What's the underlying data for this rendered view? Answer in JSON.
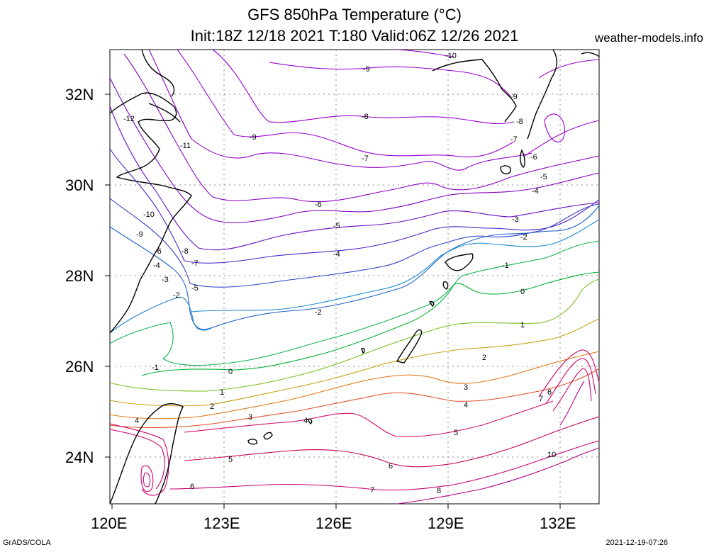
{
  "header": {
    "title_line1": "GFS 850hPa Temperature (°C)",
    "title_line2": "Init:18Z 12/18 2021 T:180 Valid:06Z 12/26 2021",
    "site": "weather-models.info"
  },
  "footer": {
    "left": "GrADS/COLA",
    "right": "2021-12-19-07:26"
  },
  "map": {
    "lat_labels": [
      "32N",
      "30N",
      "28N",
      "26N",
      "24N"
    ],
    "lon_labels": [
      "120E",
      "123E",
      "126E",
      "129E",
      "132E"
    ],
    "grid": "dotted",
    "colors": {
      "cold": "#8a00c8",
      "blue": "#1e5ac8",
      "green": "#00b43c",
      "orange": "#e6781e",
      "warm": "#c8006e"
    }
  },
  "contour_labels": [
    {
      "t": "-10"
    },
    {
      "t": "-9"
    },
    {
      "t": "-9"
    },
    {
      "t": "-8"
    },
    {
      "t": "-12"
    },
    {
      "t": "-11"
    },
    {
      "t": "-9"
    },
    {
      "t": "-8"
    },
    {
      "t": "-7"
    },
    {
      "t": "-6"
    },
    {
      "t": "-7"
    },
    {
      "t": "-5"
    },
    {
      "t": "-4"
    },
    {
      "t": "-10"
    },
    {
      "t": "-6"
    },
    {
      "t": "-9"
    },
    {
      "t": "-5"
    },
    {
      "t": "-3"
    },
    {
      "t": "-8"
    },
    {
      "t": "-2"
    },
    {
      "t": "-6"
    },
    {
      "t": "-7"
    },
    {
      "t": "-4"
    },
    {
      "t": "-1"
    },
    {
      "t": "-4"
    },
    {
      "t": "-3"
    },
    {
      "t": "-5"
    },
    {
      "t": "0"
    },
    {
      "t": "-2"
    },
    {
      "t": "-2"
    },
    {
      "t": "1"
    },
    {
      "t": "-1"
    },
    {
      "t": "0"
    },
    {
      "t": "2"
    },
    {
      "t": "1"
    },
    {
      "t": "3"
    },
    {
      "t": "2"
    },
    {
      "t": "4"
    },
    {
      "t": "3"
    },
    {
      "t": "6"
    },
    {
      "t": "7"
    },
    {
      "t": "4"
    },
    {
      "t": "4"
    },
    {
      "t": "5"
    },
    {
      "t": "10"
    },
    {
      "t": "5"
    },
    {
      "t": "6"
    },
    {
      "t": "6"
    },
    {
      "t": "7"
    },
    {
      "t": "8"
    }
  ]
}
